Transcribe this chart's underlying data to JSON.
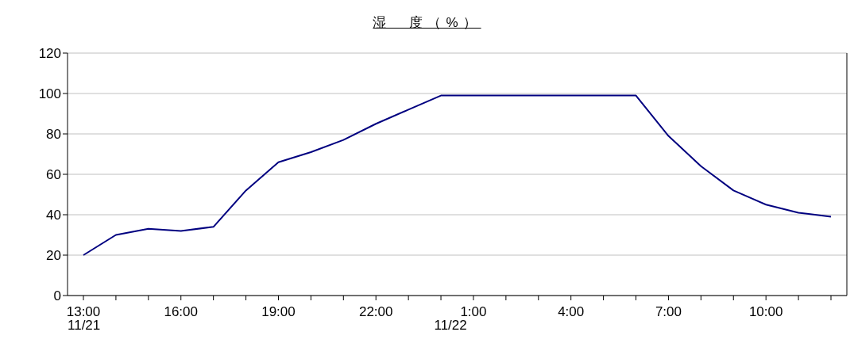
{
  "chart_data": {
    "type": "line",
    "title": "湿　度（%）",
    "categories": [
      "13:00",
      null,
      null,
      "16:00",
      null,
      null,
      "19:00",
      null,
      null,
      "22:00",
      null,
      null,
      "1:00",
      null,
      null,
      "4:00",
      null,
      null,
      "7:00",
      null,
      null,
      "10:00",
      null,
      null
    ],
    "series": [
      {
        "color": "#000080",
        "values": [
          20,
          30,
          33,
          32,
          34,
          52,
          66,
          71,
          77,
          85,
          92,
          99,
          99,
          99,
          99,
          99,
          99,
          99,
          79,
          64,
          52,
          45,
          41,
          39
        ]
      }
    ],
    "ylim": [
      0,
      120
    ],
    "yticks": [
      0,
      20,
      40,
      60,
      80,
      100,
      120
    ],
    "grid": "y",
    "marker": "none",
    "line_style": "solid",
    "annotations": [
      "11/21",
      "11/22"
    ]
  }
}
